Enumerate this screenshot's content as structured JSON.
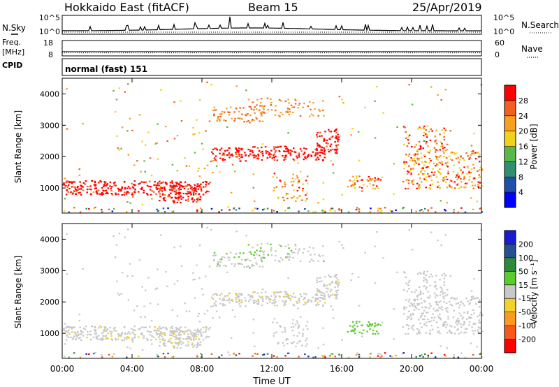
{
  "header": {
    "title": "Hokkaido East (fitACF)",
    "beam": "Beam 15",
    "date": "25/Apr/2019"
  },
  "strip_labels": {
    "nsky": "N.Sky",
    "freq": "Freq.",
    "mhz": "[MHz]",
    "cpid": "CPID",
    "nsearch": "N.Search",
    "nave": "Nave"
  },
  "cpid_text": "normal (fast) 151",
  "chart_data": [
    {
      "type": "line",
      "name": "noise-strip",
      "left_ticks": [
        "10^5",
        "10^0"
      ],
      "right_ticks": [
        "10^5",
        "10^0"
      ]
    },
    {
      "type": "line",
      "name": "freq-nave-strip",
      "left_ticks": [
        "18",
        "8"
      ],
      "right_ticks": [
        "60",
        "0"
      ],
      "frequency_mhz": 10.8,
      "nave": 12
    },
    {
      "type": "heatmap",
      "name": "power",
      "ylabel": "Slant Range [km]",
      "ylim": [
        200,
        4500
      ],
      "y_ticks": [
        "1000",
        "2000",
        "3000",
        "4000"
      ],
      "colorbar_label": "Power [dB]",
      "colorbar_ticks": [
        "4",
        "8",
        "12",
        "16",
        "20",
        "24",
        "28"
      ],
      "colorbar_colors": [
        "#0000ff",
        "#1f4fa8",
        "#2f8f6f",
        "#5ab84a",
        "#f1d21a",
        "#f7a01d",
        "#f06020",
        "#ff0000"
      ]
    },
    {
      "type": "heatmap",
      "name": "velocity",
      "ylabel": "Slant Range [km]",
      "ylim": [
        200,
        4500
      ],
      "y_ticks": [
        "1000",
        "2000",
        "3000",
        "4000"
      ],
      "colorbar_label": "Velocity [m s⁻¹]",
      "colorbar_ticks": [
        "-200",
        "-100",
        "-50",
        "-15",
        "15",
        "50",
        "100",
        "200"
      ],
      "colorbar_colors": [
        "#ff0000",
        "#f8581a",
        "#fb9a1e",
        "#f2d12a",
        "#c8c8c8",
        "#5ccc2c",
        "#2e8a3a",
        "#26508f",
        "#1b1bcf"
      ]
    }
  ],
  "time_axis": {
    "label": "Time UT",
    "ticks": [
      "00:00",
      "04:00",
      "08:00",
      "12:00",
      "16:00",
      "20:00",
      "00:00"
    ]
  }
}
